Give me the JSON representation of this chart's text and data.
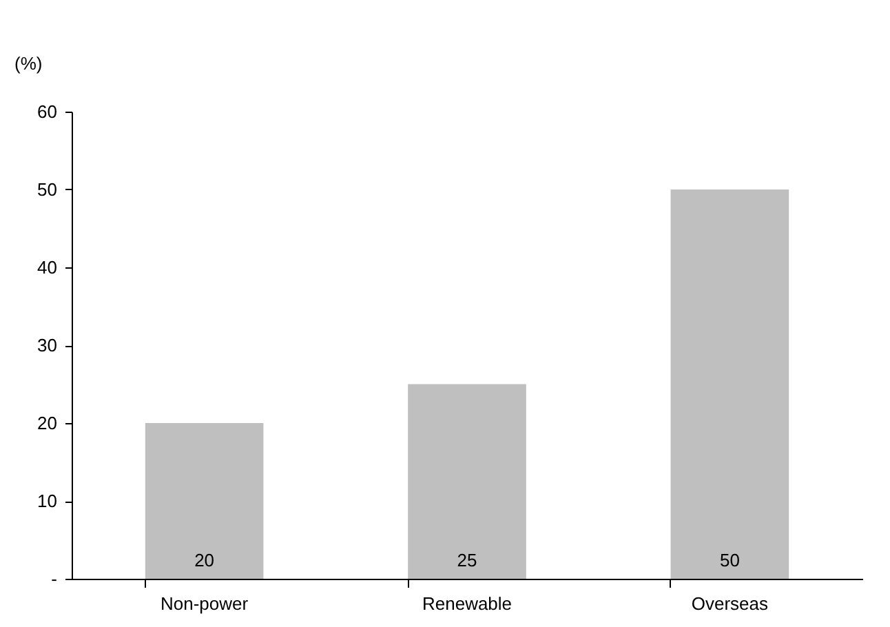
{
  "chart_data": {
    "type": "bar",
    "ylabel": "(%)",
    "categories": [
      "Non-power",
      "Renewable",
      "Overseas"
    ],
    "values": [
      20,
      25,
      50
    ],
    "color": "#bfbfbf",
    "ylim": [
      0,
      60
    ],
    "yticks": [
      {
        "value": 0,
        "label": "-"
      },
      10,
      20,
      30,
      40,
      50,
      60
    ],
    "data_labels": true
  }
}
